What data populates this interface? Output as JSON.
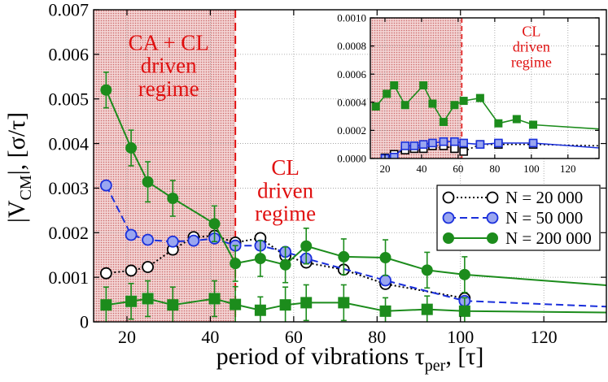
{
  "chart_data": [
    {
      "type": "line",
      "role": "main",
      "title": "",
      "xlabel": "period of vibrations τ",
      "xlabel_sub": "per",
      "xlabel_unit": ", [τ]",
      "ylabel": "|V",
      "ylabel_sub": "CM",
      "ylabel_unit": "|, [σ/τ]",
      "xlim": [
        12,
        135
      ],
      "ylim": [
        0,
        0.007
      ],
      "xticks": [
        20,
        40,
        60,
        80,
        100,
        120
      ],
      "xtick_labels": [
        "20",
        "40",
        "60",
        "80",
        "100",
        "120"
      ],
      "yticks": [
        0,
        0.001,
        0.002,
        0.003,
        0.004,
        0.005,
        0.006,
        0.007
      ],
      "ytick_labels": [
        "0",
        "0.001",
        "0.002",
        "0.003",
        "0.004",
        "0.005",
        "0.006",
        "0.007"
      ],
      "grid": true,
      "shaded_region": {
        "x_from": 12,
        "x_to": 46,
        "boundary_x": 46,
        "color": "#e6b4b4"
      },
      "annotations": [
        {
          "lines": [
            "CA + CL",
            "driven",
            "regime"
          ],
          "x": 30,
          "y": 0.0061,
          "color": "#e01010"
        },
        {
          "lines": [
            "CL",
            "driven",
            "regime"
          ],
          "x": 58,
          "y": 0.0033,
          "color": "#e01010"
        }
      ],
      "legend": {
        "position": "right",
        "entries": [
          "N = 20 000",
          "N = 50 000",
          "N = 200 000"
        ]
      },
      "series": [
        {
          "name": "N = 20 000",
          "color": "#000000",
          "marker": "open-circle",
          "dash": "dotted",
          "show_in_legend": true,
          "x": [
            15,
            21,
            25,
            31,
            36,
            41,
            46,
            52,
            58,
            63,
            72,
            82,
            101
          ],
          "y": [
            0.00109,
            0.00115,
            0.00123,
            0.00162,
            0.0019,
            0.00193,
            0.00178,
            0.00188,
            0.00148,
            0.00133,
            0.00117,
            0.00085,
            0.00053
          ],
          "err": [
            0,
            0,
            0,
            0,
            0,
            0,
            0,
            0,
            0,
            0,
            0,
            0,
            0
          ]
        },
        {
          "name": "N = 50 000",
          "color": "#1a2fdb",
          "marker": "filled-circle-light",
          "dash": "dashed",
          "show_in_legend": true,
          "x": [
            15,
            21,
            25,
            31,
            36,
            41,
            46,
            52,
            58,
            63,
            82,
            101,
            135
          ],
          "y": [
            0.00306,
            0.00195,
            0.00184,
            0.0018,
            0.00182,
            0.00187,
            0.00171,
            0.00171,
            0.00157,
            0.00142,
            0.00093,
            0.00047,
            0.00034
          ],
          "err": [
            0,
            0,
            0,
            0,
            0,
            0,
            0,
            0,
            0,
            0,
            0,
            0,
            0
          ]
        },
        {
          "name": "N = 200 000 (circles)",
          "color": "#1c8c1c",
          "marker": "filled-circle",
          "dash": "solid",
          "show_in_legend": true,
          "x": [
            15,
            21,
            25,
            31,
            41,
            46,
            52,
            58,
            63,
            72,
            82,
            92,
            101,
            135
          ],
          "y": [
            0.0052,
            0.0039,
            0.00314,
            0.00277,
            0.0022,
            0.00131,
            0.00142,
            0.00128,
            0.0017,
            0.00146,
            0.00144,
            0.00116,
            0.00106,
            0.00082
          ],
          "err": [
            0.0004,
            0.0004,
            0.00045,
            0.0004,
            0.0004,
            0.0004,
            0.0004,
            0.0004,
            0.0004,
            0.0004,
            0.0004,
            0.0004,
            0.0004,
            0
          ]
        },
        {
          "name": "N = 200 000 (squares)",
          "color": "#1c8c1c",
          "marker": "filled-square",
          "dash": "solid",
          "show_in_legend": false,
          "x": [
            15,
            21,
            25,
            31,
            41,
            46,
            52,
            58,
            63,
            72,
            82,
            92,
            101,
            135
          ],
          "y": [
            0.00038,
            0.00046,
            0.00052,
            0.00038,
            0.00052,
            0.00039,
            0.00026,
            0.00038,
            0.00043,
            0.00043,
            0.00024,
            0.00028,
            0.00024,
            0.00021
          ],
          "err": [
            0.0004,
            0.0004,
            0.0004,
            0.0004,
            0.0004,
            0.0004,
            0.0003,
            0.0004,
            0.0004,
            0.0004,
            0.0003,
            0.0003,
            0.0003,
            0
          ]
        }
      ]
    },
    {
      "type": "line",
      "role": "inset",
      "title": "",
      "xlim": [
        12,
        137
      ],
      "ylim": [
        0,
        0.001
      ],
      "xticks": [
        20,
        40,
        60,
        80,
        100,
        120
      ],
      "xtick_labels": [
        "20",
        "40",
        "60",
        "80",
        "100",
        "120"
      ],
      "yticks": [
        0,
        0.0002,
        0.0004,
        0.0006,
        0.0008,
        0.001
      ],
      "ytick_labels": [
        "0.0000",
        "0.0002",
        "0.0004",
        "0.0006",
        "0.0008",
        "0.0010"
      ],
      "grid": true,
      "shaded_region": {
        "x_from": 12,
        "x_to": 62,
        "boundary_x": 62,
        "color": "#e6b4b4"
      },
      "annotations": [
        {
          "lines": [
            "CL",
            "driven",
            "regime"
          ],
          "x": 100,
          "y": 0.00087,
          "color": "#e01010"
        }
      ],
      "series": [
        {
          "name": "N = 20 000",
          "color": "#000000",
          "marker": "open-square",
          "dash": "dotted",
          "x": [
            20,
            25,
            31,
            36,
            41,
            46,
            52,
            58,
            63,
            72,
            82,
            101,
            137
          ],
          "y": [
            5e-06,
            3e-05,
            6e-05,
            7e-05,
            7e-05,
            9e-05,
            9e-05,
            7e-05,
            5e-05,
            0.0001,
            0.0001,
            0.0001,
            9e-05
          ]
        },
        {
          "name": "N = 50 000",
          "color": "#1a2fdb",
          "marker": "filled-square-light",
          "dash": "solid",
          "x": [
            20,
            25,
            31,
            36,
            41,
            46,
            52,
            58,
            63,
            72,
            82,
            101,
            137
          ],
          "y": [
            0.0,
            1e-05,
            9e-05,
            9e-05,
            0.0001,
            0.00011,
            0.00012,
            0.00012,
            0.00011,
            0.0001,
            0.00011,
            0.00011,
            7.5e-05
          ]
        },
        {
          "name": "N = 200 000",
          "color": "#1c8c1c",
          "marker": "filled-square",
          "dash": "solid",
          "x": [
            15,
            21,
            25,
            31,
            41,
            46,
            52,
            58,
            63,
            72,
            82,
            92,
            101,
            137
          ],
          "y": [
            0.00037,
            0.00046,
            0.00052,
            0.00038,
            0.00052,
            0.00039,
            0.00026,
            0.00038,
            0.00041,
            0.00043,
            0.00025,
            0.00028,
            0.00024,
            0.00021
          ]
        }
      ]
    }
  ]
}
